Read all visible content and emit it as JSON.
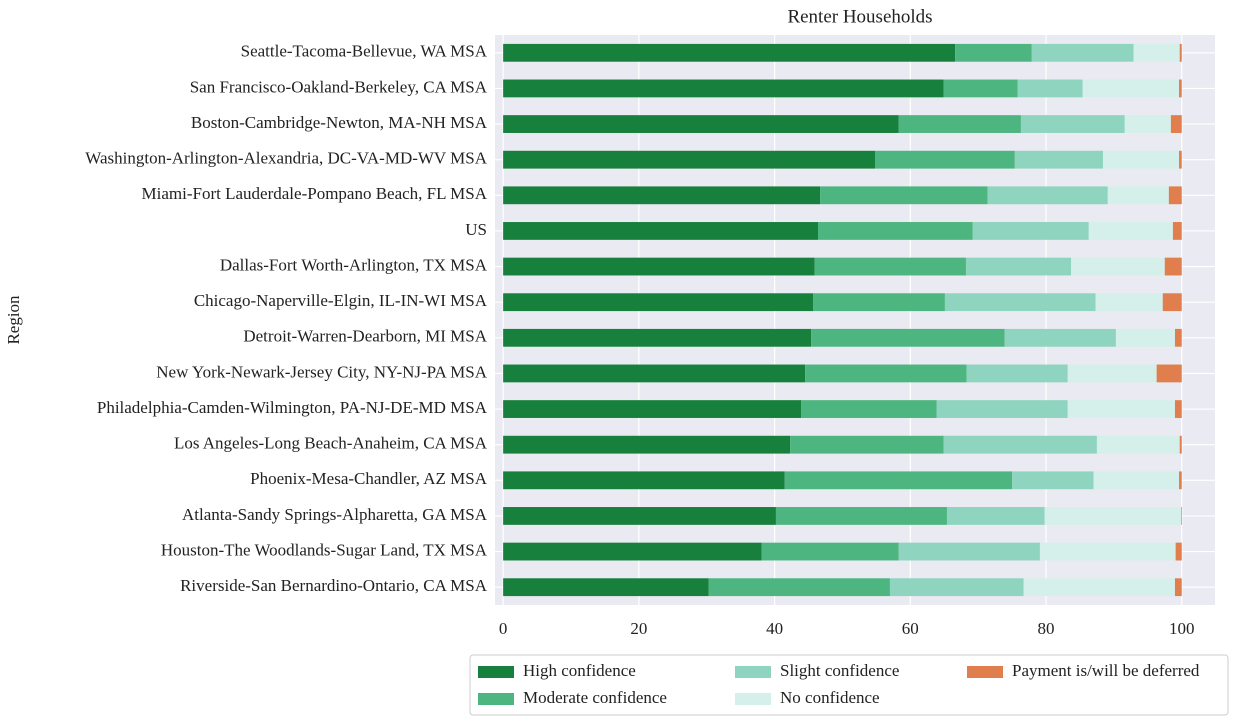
{
  "chart_data": {
    "type": "stacked_barh",
    "title": "Renter Households",
    "y_label": "Region",
    "categories": [
      "Seattle-Tacoma-Bellevue, WA MSA",
      "San Francisco-Oakland-Berkeley, CA MSA",
      "Boston-Cambridge-Newton, MA-NH MSA",
      "Washington-Arlington-Alexandria, DC-VA-MD-WV MSA",
      "Miami-Fort Lauderdale-Pompano Beach, FL MSA",
      "US",
      "Dallas-Fort Worth-Arlington, TX MSA",
      "Chicago-Naperville-Elgin, IL-IN-WI MSA",
      "Detroit-Warren-Dearborn, MI MSA",
      "New York-Newark-Jersey City, NY-NJ-PA MSA",
      "Philadelphia-Camden-Wilmington, PA-NJ-DE-MD MSA",
      "Los Angeles-Long Beach-Anaheim, CA MSA",
      "Phoenix-Mesa-Chandler, AZ MSA",
      "Atlanta-Sandy Springs-Alpharetta, GA MSA",
      "Houston-The Woodlands-Sugar Land, TX MSA",
      "Riverside-San Bernardino-Ontario, CA MSA"
    ],
    "series": [
      {
        "name": "High confidence",
        "color": "#17803d",
        "values": [
          66.6,
          64.9,
          58.3,
          54.8,
          46.7,
          46.4,
          45.9,
          45.7,
          45.4,
          44.5,
          43.9,
          42.3,
          41.5,
          40.2,
          38.1,
          30.3
        ]
      },
      {
        "name": "Moderate confidence",
        "color": "#4db57f",
        "values": [
          11.3,
          10.9,
          18.0,
          20.6,
          24.7,
          22.8,
          22.3,
          19.4,
          28.5,
          23.8,
          20.0,
          22.6,
          33.5,
          25.2,
          20.2,
          26.7
        ]
      },
      {
        "name": "Slight confidence",
        "color": "#8fd4bf",
        "values": [
          15.0,
          9.6,
          15.3,
          13.0,
          17.7,
          17.1,
          15.5,
          22.2,
          16.4,
          14.9,
          19.3,
          22.6,
          12.0,
          14.4,
          20.8,
          19.7
        ]
      },
      {
        "name": "No confidence",
        "color": "#d5f0ea",
        "values": [
          6.8,
          14.2,
          6.8,
          11.2,
          9.0,
          12.4,
          13.8,
          9.9,
          8.7,
          13.1,
          15.8,
          12.2,
          12.6,
          20.1,
          20.0,
          22.3
        ]
      },
      {
        "name": "Payment is/will be deferred",
        "color": "#e07f4d",
        "values": [
          0.3,
          0.4,
          1.6,
          0.4,
          1.9,
          1.3,
          2.5,
          2.8,
          1.0,
          3.7,
          1.0,
          0.3,
          0.4,
          0.1,
          0.9,
          1.0
        ]
      }
    ],
    "xlim": [
      -1.2,
      104.9
    ],
    "xticks": [
      0,
      20,
      40,
      60,
      80,
      100
    ],
    "grid": true,
    "legend": "bottom"
  }
}
